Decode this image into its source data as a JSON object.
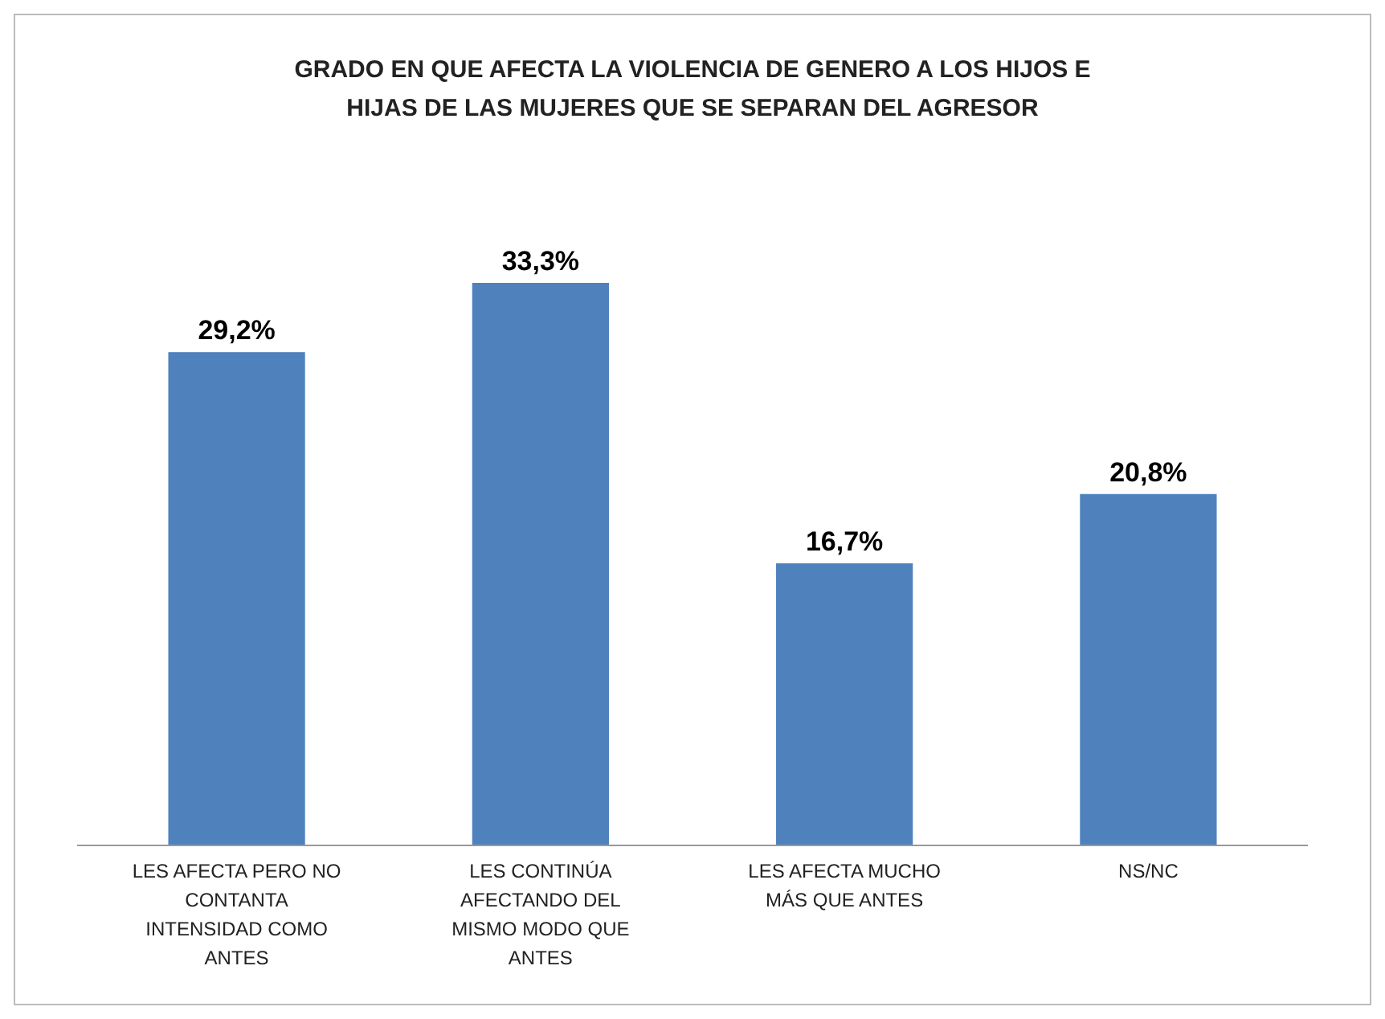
{
  "chart_data": {
    "type": "bar",
    "title": "GRADO EN QUE AFECTA LA VIOLENCIA DE GENERO A LOS HIJOS E HIJAS DE LAS MUJERES QUE SE SEPARAN DEL AGRESOR",
    "categories": [
      "LES AFECTA PERO NO CONTANTA INTENSIDAD COMO ANTES",
      "LES CONTINÚA AFECTANDO DEL MISMO MODO QUE ANTES",
      "LES AFECTA MUCHO MÁS QUE ANTES",
      "NS/NC"
    ],
    "values": [
      29.2,
      33.3,
      16.7,
      20.8
    ],
    "value_labels": [
      "29,2%",
      "33,3%",
      "16,7%",
      "20,8%"
    ],
    "color": "#4f81bd"
  }
}
